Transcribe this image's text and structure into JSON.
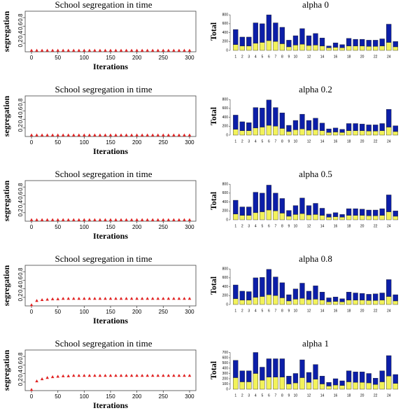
{
  "chart_data": [
    {
      "type": "scatter",
      "title": "School segregation in time",
      "xlabel": "Iterations",
      "ylabel": "segregation",
      "color": "#e02020",
      "x": [
        0,
        10,
        20,
        30,
        40,
        50,
        60,
        70,
        80,
        90,
        100,
        110,
        120,
        130,
        140,
        150,
        160,
        170,
        180,
        190,
        200,
        210,
        220,
        230,
        240,
        250,
        260,
        270,
        280,
        290,
        300
      ],
      "values": [
        0.03,
        0.03,
        0.03,
        0.03,
        0.03,
        0.03,
        0.03,
        0.03,
        0.03,
        0.03,
        0.03,
        0.03,
        0.03,
        0.03,
        0.03,
        0.03,
        0.03,
        0.03,
        0.03,
        0.03,
        0.03,
        0.03,
        0.03,
        0.03,
        0.03,
        0.03,
        0.03,
        0.03,
        0.03,
        0.03,
        0.03
      ],
      "xlim": [
        -12,
        312
      ],
      "xticks": [
        0,
        50,
        100,
        150,
        200,
        250,
        300
      ],
      "ylim": [
        0,
        0.95
      ],
      "yticks": [
        0.2,
        0.4,
        0.6,
        0.8
      ]
    },
    {
      "type": "bar",
      "title": "alpha 0",
      "ylabel": "Total",
      "stacked": true,
      "categories": [
        "1",
        "2",
        "3",
        "4",
        "5",
        "6",
        "7",
        "8",
        "9",
        "10",
        null,
        "12",
        null,
        "14",
        null,
        "16",
        null,
        "18",
        null,
        "20",
        null,
        "22",
        null,
        "24",
        null
      ],
      "series": [
        {
          "color": "#f2f25a",
          "values": [
            130,
            100,
            100,
            160,
            180,
            220,
            200,
            150,
            80,
            120,
            140,
            110,
            120,
            100,
            60,
            70,
            60,
            100,
            100,
            100,
            90,
            90,
            100,
            180,
            80
          ]
        },
        {
          "color": "#0c1ea8",
          "values": [
            340,
            200,
            200,
            460,
            420,
            580,
            420,
            370,
            150,
            210,
            350,
            220,
            260,
            180,
            40,
            100,
            70,
            170,
            150,
            150,
            140,
            140,
            160,
            410,
            120
          ]
        }
      ],
      "ylim": [
        0,
        850
      ],
      "yticks": [
        0,
        200,
        400,
        600,
        800
      ]
    },
    {
      "type": "scatter",
      "title": "School segregation in time",
      "xlabel": "Iterations",
      "ylabel": "segregation",
      "color": "#e02020",
      "x": [
        0,
        10,
        20,
        30,
        40,
        50,
        60,
        70,
        80,
        90,
        100,
        110,
        120,
        130,
        140,
        150,
        160,
        170,
        180,
        190,
        200,
        210,
        220,
        230,
        240,
        250,
        260,
        270,
        280,
        290,
        300
      ],
      "values": [
        0.03,
        0.03,
        0.03,
        0.03,
        0.03,
        0.03,
        0.03,
        0.03,
        0.03,
        0.03,
        0.03,
        0.03,
        0.03,
        0.03,
        0.03,
        0.03,
        0.03,
        0.03,
        0.03,
        0.03,
        0.03,
        0.03,
        0.03,
        0.03,
        0.03,
        0.03,
        0.03,
        0.03,
        0.03,
        0.03,
        0.03
      ],
      "xlim": [
        -12,
        312
      ],
      "xticks": [
        0,
        50,
        100,
        150,
        200,
        250,
        300
      ],
      "ylim": [
        0,
        0.95
      ],
      "yticks": [
        0.2,
        0.4,
        0.6,
        0.8
      ]
    },
    {
      "type": "bar",
      "title": "alpha 0.2",
      "ylabel": "Total",
      "stacked": true,
      "categories": [
        "1",
        "2",
        "3",
        "4",
        "5",
        "6",
        "7",
        "8",
        "9",
        "10",
        null,
        "12",
        null,
        "14",
        null,
        "16",
        null,
        "18",
        null,
        "20",
        null,
        "22",
        null,
        "24",
        null
      ],
      "series": [
        {
          "color": "#f2f25a",
          "values": [
            130,
            100,
            100,
            160,
            180,
            220,
            200,
            150,
            80,
            120,
            140,
            110,
            120,
            100,
            60,
            70,
            60,
            100,
            100,
            100,
            90,
            90,
            100,
            180,
            80
          ]
        },
        {
          "color": "#0c1ea8",
          "values": [
            320,
            200,
            180,
            460,
            430,
            570,
            420,
            350,
            140,
            210,
            330,
            220,
            260,
            170,
            80,
            90,
            70,
            160,
            160,
            150,
            140,
            140,
            160,
            400,
            130
          ]
        }
      ],
      "ylim": [
        0,
        850
      ],
      "yticks": [
        0,
        200,
        400,
        600,
        800
      ]
    },
    {
      "type": "scatter",
      "title": "School segregation in time",
      "xlabel": "Iterations",
      "ylabel": "segregation",
      "color": "#e02020",
      "x": [
        0,
        10,
        20,
        30,
        40,
        50,
        60,
        70,
        80,
        90,
        100,
        110,
        120,
        130,
        140,
        150,
        160,
        170,
        180,
        190,
        200,
        210,
        220,
        230,
        240,
        250,
        260,
        270,
        280,
        290,
        300
      ],
      "values": [
        0.03,
        0.03,
        0.03,
        0.03,
        0.03,
        0.03,
        0.03,
        0.03,
        0.03,
        0.03,
        0.03,
        0.03,
        0.03,
        0.03,
        0.03,
        0.03,
        0.03,
        0.03,
        0.03,
        0.03,
        0.03,
        0.03,
        0.03,
        0.03,
        0.03,
        0.03,
        0.03,
        0.03,
        0.03,
        0.03,
        0.03
      ],
      "xlim": [
        -12,
        312
      ],
      "xticks": [
        0,
        50,
        100,
        150,
        200,
        250,
        300
      ],
      "ylim": [
        0,
        0.95
      ],
      "yticks": [
        0.2,
        0.4,
        0.6,
        0.8
      ]
    },
    {
      "type": "bar",
      "title": "alpha 0.5",
      "ylabel": "Total",
      "stacked": true,
      "categories": [
        "1",
        "2",
        "3",
        "4",
        "5",
        "6",
        "7",
        "8",
        "9",
        "10",
        null,
        "12",
        null,
        "14",
        null,
        "16",
        null,
        "18",
        null,
        "20",
        null,
        "22",
        null,
        "24",
        null
      ],
      "series": [
        {
          "color": "#f2f25a",
          "values": [
            130,
            100,
            100,
            160,
            180,
            220,
            200,
            150,
            80,
            120,
            140,
            110,
            120,
            100,
            60,
            70,
            60,
            100,
            100,
            100,
            90,
            90,
            100,
            180,
            80
          ]
        },
        {
          "color": "#0c1ea8",
          "values": [
            310,
            190,
            190,
            460,
            420,
            560,
            400,
            330,
            130,
            200,
            350,
            210,
            250,
            160,
            70,
            90,
            60,
            150,
            150,
            140,
            130,
            130,
            150,
            380,
            120
          ]
        }
      ],
      "ylim": [
        0,
        850
      ],
      "yticks": [
        0,
        200,
        400,
        600,
        800
      ]
    },
    {
      "type": "scatter",
      "title": "School segregation in time",
      "xlabel": "Iterations",
      "ylabel": "segregation",
      "color": "#e02020",
      "x": [
        0,
        10,
        20,
        30,
        40,
        50,
        60,
        70,
        80,
        90,
        100,
        110,
        120,
        130,
        140,
        150,
        160,
        170,
        180,
        190,
        200,
        210,
        220,
        230,
        240,
        250,
        260,
        270,
        280,
        290,
        300
      ],
      "values": [
        0.02,
        0.12,
        0.14,
        0.15,
        0.16,
        0.16,
        0.17,
        0.17,
        0.17,
        0.17,
        0.17,
        0.17,
        0.17,
        0.17,
        0.17,
        0.17,
        0.17,
        0.17,
        0.17,
        0.17,
        0.17,
        0.17,
        0.17,
        0.17,
        0.17,
        0.17,
        0.17,
        0.17,
        0.17,
        0.17,
        0.17
      ],
      "xlim": [
        -12,
        312
      ],
      "xticks": [
        0,
        50,
        100,
        150,
        200,
        250,
        300
      ],
      "ylim": [
        0,
        0.95
      ],
      "yticks": [
        0.2,
        0.4,
        0.6,
        0.8
      ]
    },
    {
      "type": "bar",
      "title": "alpha 0.8",
      "ylabel": "Total",
      "stacked": true,
      "categories": [
        "1",
        "2",
        "3",
        "4",
        "5",
        "6",
        "7",
        "8",
        "9",
        "10",
        null,
        "12",
        null,
        "14",
        null,
        "16",
        null,
        "18",
        null,
        "20",
        null,
        "22",
        null,
        "24",
        null
      ],
      "series": [
        {
          "color": "#f2f25a",
          "values": [
            130,
            100,
            100,
            160,
            180,
            220,
            200,
            150,
            80,
            120,
            140,
            110,
            120,
            100,
            60,
            70,
            60,
            100,
            100,
            100,
            90,
            90,
            100,
            180,
            80
          ]
        },
        {
          "color": "#0c1ea8",
          "values": [
            310,
            200,
            190,
            440,
            430,
            570,
            420,
            340,
            140,
            230,
            340,
            190,
            300,
            180,
            90,
            100,
            70,
            180,
            160,
            150,
            140,
            150,
            160,
            380,
            140
          ]
        }
      ],
      "ylim": [
        0,
        850
      ],
      "yticks": [
        0,
        200,
        400,
        600,
        800
      ]
    },
    {
      "type": "scatter",
      "title": "School segregation in time",
      "xlabel": "Iterations",
      "ylabel": "segregation",
      "color": "#e02020",
      "x": [
        0,
        10,
        20,
        30,
        40,
        50,
        60,
        70,
        80,
        90,
        100,
        110,
        120,
        130,
        140,
        150,
        160,
        170,
        180,
        190,
        200,
        210,
        220,
        230,
        240,
        250,
        260,
        270,
        280,
        290,
        300
      ],
      "values": [
        0.02,
        0.22,
        0.27,
        0.3,
        0.32,
        0.33,
        0.34,
        0.34,
        0.35,
        0.35,
        0.35,
        0.35,
        0.35,
        0.35,
        0.35,
        0.35,
        0.35,
        0.35,
        0.35,
        0.35,
        0.35,
        0.35,
        0.35,
        0.35,
        0.35,
        0.35,
        0.35,
        0.35,
        0.35,
        0.35,
        0.35
      ],
      "xlim": [
        -12,
        312
      ],
      "xticks": [
        0,
        50,
        100,
        150,
        200,
        250,
        300
      ],
      "ylim": [
        0,
        0.95
      ],
      "yticks": [
        0.2,
        0.4,
        0.6,
        0.8
      ]
    },
    {
      "type": "bar",
      "title": "alpha 1",
      "ylabel": "Total",
      "stacked": true,
      "categories": [
        "1",
        "2",
        "3",
        "4",
        "5",
        "6",
        "7",
        "8",
        "9",
        "10",
        null,
        "12",
        null,
        "14",
        null,
        "16",
        null,
        "18",
        null,
        "20",
        null,
        "22",
        null,
        "24",
        null
      ],
      "series": [
        {
          "color": "#f2f25a",
          "values": [
            220,
            140,
            140,
            300,
            170,
            230,
            230,
            230,
            100,
            120,
            220,
            130,
            190,
            100,
            60,
            80,
            70,
            140,
            130,
            130,
            120,
            90,
            140,
            250,
            110
          ]
        },
        {
          "color": "#0c1ea8",
          "values": [
            330,
            210,
            210,
            400,
            250,
            350,
            350,
            350,
            150,
            180,
            340,
            190,
            280,
            150,
            70,
            120,
            90,
            210,
            200,
            200,
            180,
            120,
            210,
            390,
            170
          ]
        }
      ],
      "ylim": [
        0,
        720
      ],
      "yticks": [
        0,
        100,
        200,
        300,
        400,
        500,
        600,
        700
      ]
    }
  ]
}
